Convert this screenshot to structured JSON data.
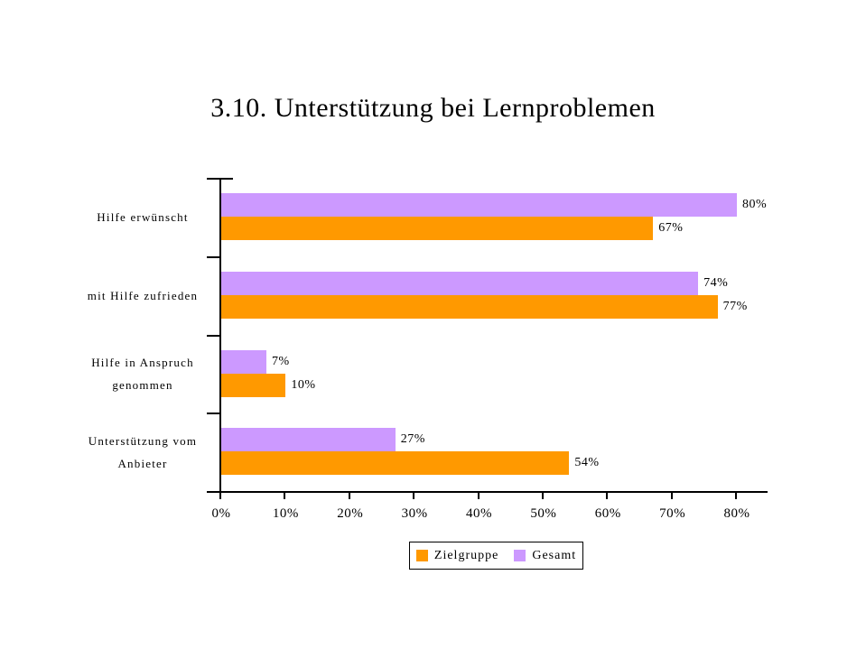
{
  "chart_data": {
    "type": "bar",
    "orientation": "horizontal",
    "title": "3.10. Unterstützung bei Lernproblemen",
    "categories": [
      "Hilfe erwünscht",
      "mit Hilfe zufrieden",
      "Hilfe in Anspruch genommen",
      "Unterstützung vom Anbieter"
    ],
    "series": [
      {
        "name": "Zielgruppe",
        "color": "#FF9900",
        "values": [
          67,
          77,
          10,
          54
        ],
        "labels": [
          "67%",
          "77%",
          "10%",
          "54%"
        ]
      },
      {
        "name": "Gesamt",
        "color": "#CC99FF",
        "values": [
          80,
          74,
          7,
          27
        ],
        "labels": [
          "80%",
          "74%",
          "7%",
          "27%"
        ]
      }
    ],
    "bar_order_top_to_bottom": [
      "Gesamt",
      "Zielgruppe"
    ],
    "xlim": [
      0,
      85
    ],
    "x_tick_labels": [
      "0%",
      "10%",
      "20%",
      "30%",
      "40%",
      "50%",
      "60%",
      "70%",
      "80%"
    ],
    "grid": false,
    "data_labels": true,
    "legend_position": "bottom",
    "background_color": "#FFFFFF",
    "axis_color": "#000000"
  }
}
